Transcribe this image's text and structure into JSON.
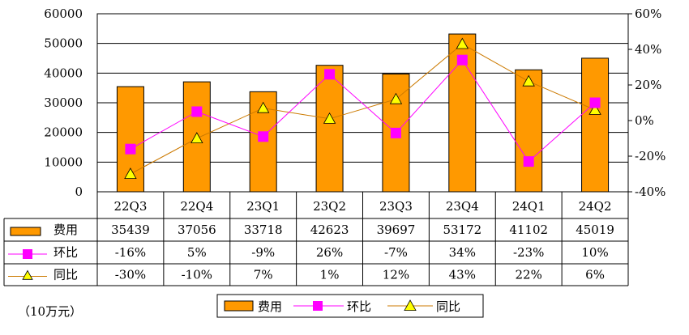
{
  "chart_data": {
    "type": "bar",
    "categories": [
      "22Q3",
      "22Q4",
      "23Q1",
      "23Q2",
      "23Q3",
      "23Q4",
      "24Q1",
      "24Q2"
    ],
    "series": [
      {
        "name": "费用",
        "type": "bar",
        "axis": "left",
        "values": [
          35439,
          37056,
          33718,
          42623,
          39697,
          53172,
          41102,
          45019
        ]
      },
      {
        "name": "环比",
        "type": "line",
        "axis": "right",
        "values": [
          -16,
          5,
          -9,
          26,
          -7,
          34,
          -23,
          10
        ]
      },
      {
        "name": "同比",
        "type": "line",
        "axis": "right",
        "values": [
          -30,
          -10,
          7,
          1,
          12,
          43,
          22,
          6
        ]
      }
    ],
    "left_axis": {
      "ticks": [
        "60000",
        "50000",
        "40000",
        "30000",
        "20000",
        "10000",
        "0"
      ],
      "ylim": [
        0,
        60000
      ]
    },
    "right_axis": {
      "ticks": [
        "60%",
        "40%",
        "20%",
        "0%",
        "-20%",
        "-40%"
      ],
      "ylim": [
        -40,
        60
      ]
    },
    "table": {
      "rows": [
        {
          "label": "费用",
          "values": [
            "35439",
            "37056",
            "33718",
            "42623",
            "39697",
            "53172",
            "41102",
            "45019"
          ]
        },
        {
          "label": "环比",
          "values": [
            "-16%",
            "5%",
            "-9%",
            "26%",
            "-7%",
            "34%",
            "-23%",
            "10%"
          ]
        },
        {
          "label": "同比",
          "values": [
            "-30%",
            "-10%",
            "7%",
            "1%",
            "12%",
            "43%",
            "22%",
            "6%"
          ]
        }
      ]
    },
    "unit_note": "（10万元）",
    "legend": {
      "position": "bottom",
      "items": [
        "费用",
        "环比",
        "同比"
      ]
    },
    "grid": true,
    "colors": {
      "bar": "#FF9900",
      "bar_edge": "#000000",
      "mom": "#FF00FF",
      "yoy": "#CC7A00",
      "yoy_marker": "#FFFF00"
    }
  }
}
